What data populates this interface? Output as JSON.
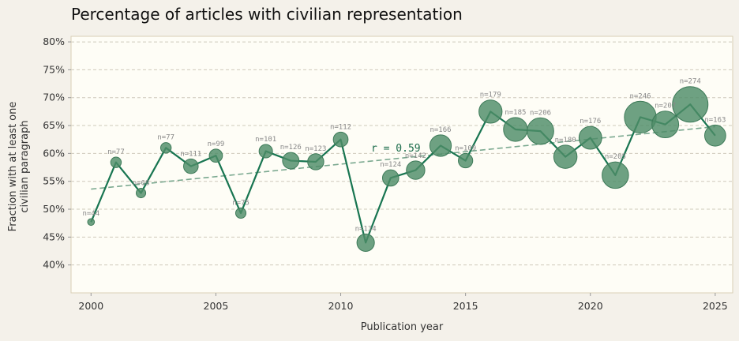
{
  "chart_data": {
    "type": "scatter",
    "title": "Percentage of articles with civilian representation",
    "xlabel": "Publication year",
    "ylabel": "Fraction with at least one civilian paragraph",
    "xlim": [
      1999.2,
      2025.7
    ],
    "ylim": [
      35,
      81
    ],
    "x_ticks": [
      2000,
      2005,
      2010,
      2015,
      2020,
      2025
    ],
    "y_ticks": [
      40,
      45,
      50,
      55,
      60,
      65,
      70,
      75,
      80
    ],
    "y_tick_format": "%",
    "grid": "horizontal dashed",
    "annotation": "r = 0.59",
    "trend": {
      "x": [
        2000,
        2025
      ],
      "y": [
        53.6,
        64.8
      ]
    },
    "points": [
      {
        "x": 2000,
        "y": 47.7,
        "n": "n=44"
      },
      {
        "x": 2001,
        "y": 58.4,
        "n": "n=77"
      },
      {
        "x": 2002,
        "y": 52.9,
        "n": "n=68"
      },
      {
        "x": 2003,
        "y": 61.0,
        "n": "n=77"
      },
      {
        "x": 2004,
        "y": 57.7,
        "n": "n=111"
      },
      {
        "x": 2005,
        "y": 59.6,
        "n": "n=99"
      },
      {
        "x": 2006,
        "y": 49.3,
        "n": "n=75"
      },
      {
        "x": 2007,
        "y": 60.4,
        "n": "n=101"
      },
      {
        "x": 2008,
        "y": 58.7,
        "n": "n=126"
      },
      {
        "x": 2009,
        "y": 58.5,
        "n": "n=123"
      },
      {
        "x": 2010,
        "y": 62.5,
        "n": "n=112"
      },
      {
        "x": 2011,
        "y": 44.0,
        "n": "n=134"
      },
      {
        "x": 2012,
        "y": 55.6,
        "n": "n=124"
      },
      {
        "x": 2013,
        "y": 57.0,
        "n": "n=142"
      },
      {
        "x": 2014,
        "y": 61.4,
        "n": "n=166"
      },
      {
        "x": 2015,
        "y": 58.7,
        "n": "n=109"
      },
      {
        "x": 2016,
        "y": 67.5,
        "n": "n=179"
      },
      {
        "x": 2017,
        "y": 64.3,
        "n": "n=185"
      },
      {
        "x": 2018,
        "y": 64.0,
        "n": "n=206"
      },
      {
        "x": 2019,
        "y": 59.4,
        "n": "n=180"
      },
      {
        "x": 2020,
        "y": 62.8,
        "n": "n=176"
      },
      {
        "x": 2021,
        "y": 56.1,
        "n": "n=205"
      },
      {
        "x": 2022,
        "y": 66.5,
        "n": "n=246"
      },
      {
        "x": 2023,
        "y": 65.2,
        "n": "n=207"
      },
      {
        "x": 2024,
        "y": 68.8,
        "n": "n=274"
      },
      {
        "x": 2025,
        "y": 63.2,
        "n": "n=163"
      }
    ]
  }
}
